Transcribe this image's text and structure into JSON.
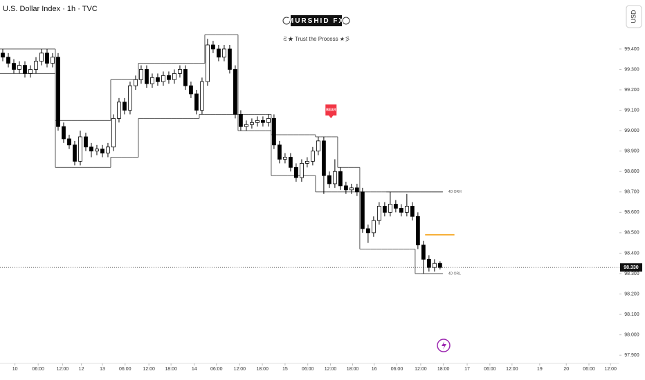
{
  "header": {
    "title": "U.S. Dollar Index · 1h · TVC",
    "logo": "MURSHID FX",
    "tagline": "ミ★ Trust the Process ★彡",
    "currency_button": "USD"
  },
  "chart_data": {
    "type": "candlestick",
    "up_color": "#ffffff",
    "down_color": "#000000",
    "border_color": "#000000",
    "xlim": [
      -0.5,
      111.4
    ],
    "ylim": [
      97.86,
      99.64
    ],
    "xticks": [
      {
        "value": 2.2,
        "label": "10"
      },
      {
        "value": 6.4,
        "label": "06:00"
      },
      {
        "value": 10.8,
        "label": "12:00"
      },
      {
        "value": 14.2,
        "label": "12"
      },
      {
        "value": 18,
        "label": "13"
      },
      {
        "value": 22.1,
        "label": "06:00"
      },
      {
        "value": 26.4,
        "label": "12:00"
      },
      {
        "value": 30.4,
        "label": "18:00"
      },
      {
        "value": 34.6,
        "label": "14"
      },
      {
        "value": 38.6,
        "label": "06:00"
      },
      {
        "value": 42.8,
        "label": "12:00"
      },
      {
        "value": 46.9,
        "label": "18:00"
      },
      {
        "value": 51,
        "label": "15"
      },
      {
        "value": 55.1,
        "label": "06:00"
      },
      {
        "value": 59.2,
        "label": "12:00"
      },
      {
        "value": 63.2,
        "label": "18:00"
      },
      {
        "value": 67.1,
        "label": "16"
      },
      {
        "value": 71.2,
        "label": "06:00"
      },
      {
        "value": 75.5,
        "label": "12:00"
      },
      {
        "value": 79.6,
        "label": "18:00"
      },
      {
        "value": 83.9,
        "label": "17"
      },
      {
        "value": 88,
        "label": "06:00"
      },
      {
        "value": 92,
        "label": "12:00"
      },
      {
        "value": 97,
        "label": "19"
      },
      {
        "value": 101.8,
        "label": "20"
      },
      {
        "value": 105.9,
        "label": "06:00"
      },
      {
        "value": 109.8,
        "label": "12:00"
      }
    ],
    "yticks": [
      {
        "value": 97.9,
        "label": "97.900"
      },
      {
        "value": 98.0,
        "label": "98.000"
      },
      {
        "value": 98.1,
        "label": "98.100"
      },
      {
        "value": 98.2,
        "label": "98.200"
      },
      {
        "value": 98.3,
        "label": "98.300"
      },
      {
        "value": 98.4,
        "label": "98.400"
      },
      {
        "value": 98.5,
        "label": "98.500"
      },
      {
        "value": 98.6,
        "label": "98.600"
      },
      {
        "value": 98.7,
        "label": "98.700"
      },
      {
        "value": 98.8,
        "label": "98.800"
      },
      {
        "value": 98.9,
        "label": "98.900"
      },
      {
        "value": 99.0,
        "label": "99.000"
      },
      {
        "value": 99.1,
        "label": "99.100"
      },
      {
        "value": 99.2,
        "label": "99.200"
      },
      {
        "value": 99.3,
        "label": "99.300"
      },
      {
        "value": 99.4,
        "label": "99.400"
      }
    ],
    "open": [
      99.38,
      99.36,
      99.33,
      99.3,
      99.32,
      99.28,
      99.3,
      99.34,
      99.38,
      99.33,
      99.36,
      99.02,
      98.96,
      98.93,
      98.85,
      98.97,
      98.92,
      98.9,
      98.91,
      98.89,
      98.92,
      99.06,
      99.14,
      99.1,
      99.22,
      99.25,
      99.3,
      99.23,
      99.26,
      99.24,
      99.27,
      99.25,
      99.28,
      99.3,
      99.22,
      99.18,
      99.1,
      99.24,
      99.42,
      99.4,
      99.36,
      99.4,
      99.3,
      99.08,
      99.02,
      99.03,
      99.04,
      99.05,
      99.04,
      99.06,
      98.93,
      98.86,
      98.87,
      98.82,
      98.77,
      98.84,
      98.85,
      98.9,
      98.95,
      98.78,
      98.74,
      98.8,
      98.73,
      98.71,
      98.72,
      98.7,
      98.52,
      98.5,
      98.56,
      98.63,
      98.6,
      98.64,
      98.62,
      98.6,
      98.63,
      98.58,
      98.44,
      98.37,
      98.33,
      98.35
    ],
    "high": [
      99.4,
      99.38,
      99.35,
      99.34,
      99.34,
      99.32,
      99.36,
      99.4,
      99.4,
      99.38,
      99.38,
      99.04,
      98.98,
      98.95,
      99.0,
      98.99,
      98.94,
      98.93,
      98.93,
      98.94,
      99.08,
      99.16,
      99.16,
      99.24,
      99.27,
      99.32,
      99.32,
      99.28,
      99.28,
      99.29,
      99.29,
      99.3,
      99.32,
      99.32,
      99.24,
      99.2,
      99.26,
      99.45,
      99.44,
      99.42,
      99.42,
      99.42,
      99.32,
      99.1,
      99.05,
      99.06,
      99.07,
      99.07,
      99.08,
      99.08,
      98.95,
      98.89,
      98.89,
      98.84,
      98.86,
      98.87,
      98.92,
      98.97,
      98.97,
      98.8,
      98.86,
      98.82,
      98.75,
      98.74,
      98.74,
      98.72,
      98.54,
      98.58,
      98.65,
      98.65,
      98.7,
      98.66,
      98.64,
      98.69,
      98.65,
      98.6,
      98.46,
      98.39,
      98.37,
      98.36
    ],
    "low": [
      99.34,
      99.31,
      99.28,
      99.28,
      99.26,
      99.26,
      99.28,
      99.32,
      99.31,
      99.31,
      99.0,
      98.94,
      98.91,
      98.83,
      98.83,
      98.9,
      98.87,
      98.88,
      98.87,
      98.87,
      98.9,
      99.04,
      99.08,
      99.08,
      99.2,
      99.23,
      99.21,
      99.21,
      99.22,
      99.22,
      99.23,
      99.23,
      99.26,
      99.2,
      99.16,
      99.08,
      99.08,
      99.22,
      99.38,
      99.34,
      99.34,
      99.28,
      99.06,
      99.0,
      99.0,
      99.01,
      99.02,
      99.02,
      99.02,
      98.91,
      98.84,
      98.84,
      98.8,
      98.75,
      98.75,
      98.82,
      98.83,
      98.88,
      98.69,
      98.72,
      98.72,
      98.71,
      98.69,
      98.69,
      98.68,
      98.5,
      98.45,
      98.48,
      98.54,
      98.58,
      98.58,
      98.6,
      98.58,
      98.58,
      98.56,
      98.42,
      98.3,
      98.31,
      98.31,
      98.32
    ],
    "close": [
      99.36,
      99.33,
      99.3,
      99.32,
      99.28,
      99.3,
      99.34,
      99.38,
      99.33,
      99.36,
      99.02,
      98.96,
      98.93,
      98.85,
      98.97,
      98.92,
      98.9,
      98.91,
      98.89,
      98.92,
      99.06,
      99.14,
      99.1,
      99.22,
      99.25,
      99.3,
      99.23,
      99.26,
      99.24,
      99.27,
      99.25,
      99.28,
      99.3,
      99.22,
      99.18,
      99.1,
      99.24,
      99.42,
      99.4,
      99.36,
      99.4,
      99.3,
      99.08,
      99.02,
      99.03,
      99.04,
      99.05,
      99.04,
      99.06,
      98.93,
      98.86,
      98.87,
      98.82,
      98.77,
      98.84,
      98.85,
      98.9,
      98.95,
      98.78,
      98.74,
      98.8,
      98.73,
      98.71,
      98.72,
      98.7,
      98.52,
      98.5,
      98.56,
      98.63,
      98.6,
      98.64,
      98.62,
      98.6,
      98.63,
      98.58,
      98.44,
      98.37,
      98.33,
      98.35,
      98.33
    ],
    "levels": {
      "color": "#555555",
      "upper": [
        99.4,
        99.4,
        99.4,
        99.4,
        99.4,
        99.4,
        99.4,
        99.4,
        99.4,
        99.4,
        99.05,
        99.05,
        99.05,
        99.05,
        99.05,
        99.05,
        99.05,
        99.05,
        99.05,
        99.05,
        99.25,
        99.25,
        99.25,
        99.25,
        99.25,
        99.33,
        99.33,
        99.33,
        99.33,
        99.33,
        99.33,
        99.33,
        99.33,
        99.33,
        99.33,
        99.33,
        99.33,
        99.47,
        99.47,
        99.47,
        99.47,
        99.47,
        99.47,
        99.08,
        99.08,
        99.08,
        99.08,
        99.08,
        99.08,
        98.98,
        98.98,
        98.98,
        98.98,
        98.98,
        98.98,
        98.98,
        98.98,
        98.97,
        98.97,
        98.97,
        98.97,
        98.82,
        98.82,
        98.82,
        98.82,
        98.7,
        98.7,
        98.7,
        98.7,
        98.7,
        98.7,
        98.7,
        98.7,
        98.7,
        98.7,
        98.7,
        98.7,
        98.7,
        98.7,
        98.7
      ],
      "lower": [
        99.28,
        99.28,
        99.28,
        99.28,
        99.28,
        99.28,
        99.28,
        99.28,
        99.28,
        99.28,
        98.82,
        98.82,
        98.82,
        98.82,
        98.82,
        98.82,
        98.82,
        98.82,
        98.82,
        98.82,
        98.87,
        98.87,
        98.87,
        98.87,
        98.87,
        99.06,
        99.06,
        99.06,
        99.06,
        99.06,
        99.06,
        99.06,
        99.06,
        99.06,
        99.06,
        99.06,
        99.08,
        99.08,
        99.08,
        99.08,
        99.08,
        99.08,
        99.08,
        99.0,
        99.0,
        99.0,
        99.0,
        99.0,
        99.0,
        98.78,
        98.78,
        98.78,
        98.78,
        98.78,
        98.78,
        98.78,
        98.78,
        98.7,
        98.7,
        98.7,
        98.7,
        98.7,
        98.7,
        98.7,
        98.7,
        98.42,
        98.42,
        98.42,
        98.42,
        98.42,
        98.42,
        98.42,
        98.42,
        98.42,
        98.42,
        98.3,
        98.3,
        98.3,
        98.3,
        98.3
      ]
    },
    "lines": [
      {
        "label": "4D ORH",
        "value": 98.7,
        "x": [
          69.3,
          79.5
        ],
        "color": "#555555"
      },
      {
        "label": "4D ORL",
        "value": 98.3,
        "x": [
          76.0,
          79.5
        ],
        "color": "#555555"
      },
      {
        "value": 98.49,
        "x": [
          76.3,
          81.6
        ],
        "color": "#f59e0b"
      }
    ],
    "markers": [
      {
        "text": "BEAR",
        "x": 59.3,
        "y": 99.04,
        "color": "#f23645"
      }
    ],
    "last_price": {
      "value": 98.33,
      "label": "98.330"
    }
  }
}
